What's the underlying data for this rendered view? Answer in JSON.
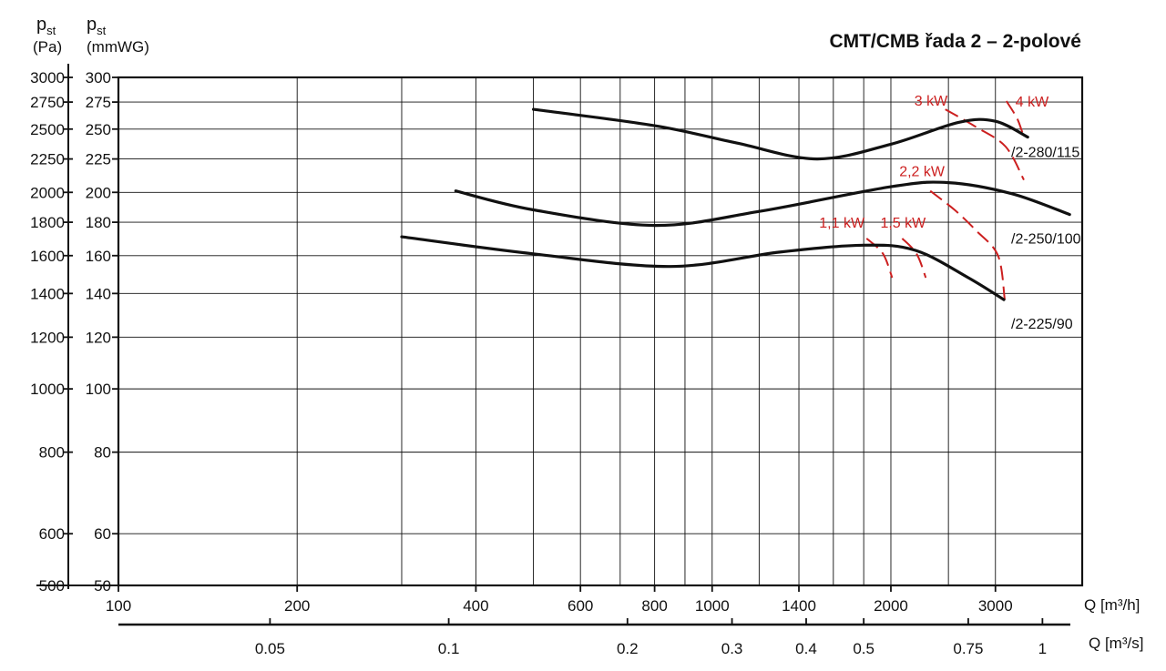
{
  "title": "CMT/CMB řada 2 – 2-polové",
  "y_label_pa": {
    "main": "p",
    "sub": "st",
    "unit": "(Pa)"
  },
  "y_label_mmwg": {
    "main": "p",
    "sub": "st",
    "unit": "(mmWG)"
  },
  "x_label_m3h": "Q [m³/h]",
  "x_label_m3s": "Q [m³/s]",
  "colors": {
    "curve": "#111111",
    "power": "#cc1f1f",
    "grid": "#111111"
  },
  "chart_data": {
    "type": "line",
    "title": "CMT/CMB řada 2 – 2-polové",
    "x_scale": "log",
    "y_scale": "log",
    "xlim": [
      100,
      4200
    ],
    "ylim": [
      500,
      3000
    ],
    "grid": true,
    "x_ticks_m3h": [
      {
        "value": 100,
        "label": "100"
      },
      {
        "value": 200,
        "label": "200"
      },
      {
        "value": 400,
        "label": "400"
      },
      {
        "value": 600,
        "label": "600"
      },
      {
        "value": 800,
        "label": "800"
      },
      {
        "value": 1000,
        "label": "1000"
      },
      {
        "value": 1400,
        "label": "1400"
      },
      {
        "value": 2000,
        "label": "2000"
      },
      {
        "value": 3000,
        "label": "3000"
      }
    ],
    "x_minor_m3h": [
      300,
      500,
      700,
      900,
      1200,
      1600,
      1800,
      2500
    ],
    "x_ticks_m3s": [
      {
        "value": 0.05,
        "label": "0.05"
      },
      {
        "value": 0.1,
        "label": "0.1"
      },
      {
        "value": 0.2,
        "label": "0.2"
      },
      {
        "value": 0.3,
        "label": "0.3"
      },
      {
        "value": 0.4,
        "label": "0.4"
      },
      {
        "value": 0.5,
        "label": "0.5"
      },
      {
        "value": 0.75,
        "label": "0.75"
      },
      {
        "value": 1,
        "label": "1"
      }
    ],
    "y_ticks_pa": [
      {
        "value": 500,
        "label": "500"
      },
      {
        "value": 600,
        "label": "600"
      },
      {
        "value": 800,
        "label": "800"
      },
      {
        "value": 1000,
        "label": "1000"
      },
      {
        "value": 1200,
        "label": "1200"
      },
      {
        "value": 1400,
        "label": "1400"
      },
      {
        "value": 1600,
        "label": "1600"
      },
      {
        "value": 1800,
        "label": "1800"
      },
      {
        "value": 2000,
        "label": "2000"
      },
      {
        "value": 2250,
        "label": "2250"
      },
      {
        "value": 2500,
        "label": "2500"
      },
      {
        "value": 2750,
        "label": "2750"
      },
      {
        "value": 3000,
        "label": "3000"
      }
    ],
    "y_ticks_mmwg": [
      {
        "value": 50,
        "label": "50"
      },
      {
        "value": 60,
        "label": "60"
      },
      {
        "value": 80,
        "label": "80"
      },
      {
        "value": 100,
        "label": "100"
      },
      {
        "value": 120,
        "label": "120"
      },
      {
        "value": 140,
        "label": "140"
      },
      {
        "value": 160,
        "label": "160"
      },
      {
        "value": 180,
        "label": "180"
      },
      {
        "value": 200,
        "label": "200"
      },
      {
        "value": 225,
        "label": "225"
      },
      {
        "value": 250,
        "label": "250"
      },
      {
        "value": 275,
        "label": "275"
      },
      {
        "value": 300,
        "label": "300"
      }
    ],
    "series": [
      {
        "name": "/2-280/115",
        "points": [
          [
            500,
            2680
          ],
          [
            800,
            2530
          ],
          [
            1100,
            2380
          ],
          [
            1500,
            2250
          ],
          [
            2000,
            2370
          ],
          [
            2600,
            2560
          ],
          [
            3000,
            2570
          ],
          [
            3400,
            2430
          ]
        ]
      },
      {
        "name": "/2-250/100",
        "points": [
          [
            370,
            2010
          ],
          [
            500,
            1880
          ],
          [
            800,
            1780
          ],
          [
            1200,
            1870
          ],
          [
            2000,
            2040
          ],
          [
            2500,
            2070
          ],
          [
            3200,
            1990
          ],
          [
            4000,
            1850
          ]
        ]
      },
      {
        "name": "/2-225/90",
        "points": [
          [
            300,
            1710
          ],
          [
            500,
            1610
          ],
          [
            850,
            1540
          ],
          [
            1300,
            1620
          ],
          [
            1800,
            1660
          ],
          [
            2200,
            1630
          ],
          [
            2700,
            1480
          ],
          [
            3100,
            1370
          ]
        ]
      }
    ],
    "power_lines": [
      {
        "name": "1,1 kW",
        "points": [
          [
            1820,
            1700
          ],
          [
            1940,
            1610
          ],
          [
            2010,
            1480
          ]
        ]
      },
      {
        "name": "1,5 kW",
        "points": [
          [
            2090,
            1700
          ],
          [
            2210,
            1610
          ],
          [
            2290,
            1480
          ]
        ]
      },
      {
        "name": "2,2 kW",
        "points": [
          [
            2330,
            2010
          ],
          [
            2560,
            1880
          ],
          [
            2780,
            1750
          ],
          [
            3030,
            1600
          ],
          [
            3110,
            1370
          ]
        ]
      },
      {
        "name": "3 kW",
        "points": [
          [
            2470,
            2680
          ],
          [
            2780,
            2520
          ],
          [
            3120,
            2350
          ],
          [
            3350,
            2090
          ]
        ]
      },
      {
        "name": "4 kW",
        "points": [
          [
            3130,
            2760
          ],
          [
            3260,
            2600
          ],
          [
            3330,
            2470
          ]
        ]
      }
    ]
  }
}
